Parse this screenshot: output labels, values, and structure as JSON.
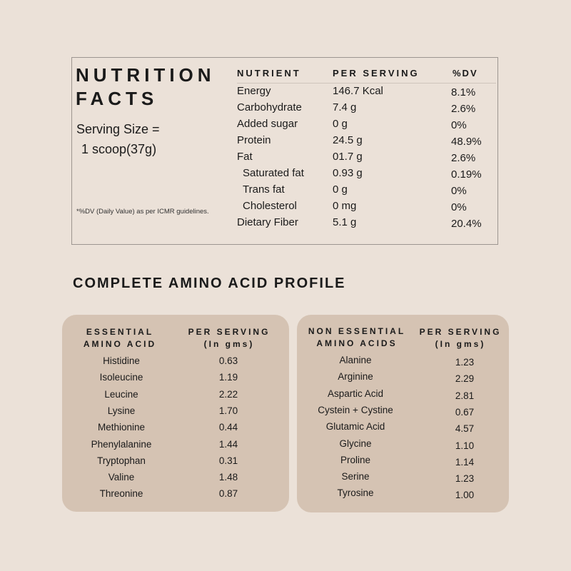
{
  "nutrition": {
    "title_line1": "NUTRITION",
    "title_line2": "FACTS",
    "serving_line1": "Serving Size =",
    "serving_line2": "1 scoop(37g)",
    "footnote": "*%DV (Daily Value) as per ICMR guidelines.",
    "headers": {
      "nutrient": "NUTRIENT",
      "per_serving": "PER SERVING",
      "dv": "%DV"
    },
    "rows": [
      {
        "nutrient": "Energy",
        "per_serving": "146.7 Kcal",
        "dv": "8.1%"
      },
      {
        "nutrient": "Carbohydrate",
        "per_serving": "7.4 g",
        "dv": "2.6%"
      },
      {
        "nutrient": "Added sugar",
        "per_serving": "0 g",
        "dv": "0%"
      },
      {
        "nutrient": "Protein",
        "per_serving": "24.5 g",
        "dv": "48.9%"
      },
      {
        "nutrient": "Fat",
        "per_serving": "01.7 g",
        "dv": "2.6%"
      },
      {
        "nutrient": "Saturated fat",
        "per_serving": "0.93 g",
        "dv": "0.19%",
        "indent": true
      },
      {
        "nutrient": "Trans fat",
        "per_serving": "0 g",
        "dv": "0%",
        "indent": true
      },
      {
        "nutrient": "Cholesterol",
        "per_serving": "0 mg",
        "dv": "0%",
        "indent": true
      },
      {
        "nutrient": "Dietary Fiber",
        "per_serving": "5.1 g",
        "dv": "20.4%"
      }
    ]
  },
  "amino": {
    "section_title": "COMPLETE AMINO ACID PROFILE",
    "essential": {
      "header_name_1": "ESSENTIAL",
      "header_name_2": "AMINO ACID",
      "header_value_1": "PER SERVING",
      "header_value_2": "(In gms)",
      "rows": [
        {
          "name": "Histidine",
          "value": "0.63"
        },
        {
          "name": "Isoleucine",
          "value": "1.19"
        },
        {
          "name": "Leucine",
          "value": "2.22"
        },
        {
          "name": "Lysine",
          "value": "1.70"
        },
        {
          "name": "Methionine",
          "value": "0.44"
        },
        {
          "name": "Phenylalanine",
          "value": "1.44"
        },
        {
          "name": "Tryptophan",
          "value": "0.31"
        },
        {
          "name": "Valine",
          "value": "1.48"
        },
        {
          "name": "Threonine",
          "value": "0.87"
        }
      ]
    },
    "non_essential": {
      "header_name_1": "NON ESSENTIAL",
      "header_name_2": "AMINO ACIDS",
      "header_value_1": "PER SERVING",
      "header_value_2": "(In gms)",
      "rows": [
        {
          "name": "Alanine",
          "value": "1.23"
        },
        {
          "name": "Arginine",
          "value": "2.29"
        },
        {
          "name": "Aspartic Acid",
          "value": "2.81"
        },
        {
          "name": "Cystein + Cystine",
          "value": "0.67"
        },
        {
          "name": "Glutamic Acid",
          "value": "4.57"
        },
        {
          "name": "Glycine",
          "value": "1.10"
        },
        {
          "name": "Proline",
          "value": "1.14"
        },
        {
          "name": "Serine",
          "value": "1.23"
        },
        {
          "name": "Tyrosine",
          "value": "1.00"
        }
      ]
    }
  },
  "colors": {
    "background": "#ebe1d8",
    "card": "#d5c3b3",
    "border": "#9d9690",
    "text": "#1a1a1a"
  }
}
